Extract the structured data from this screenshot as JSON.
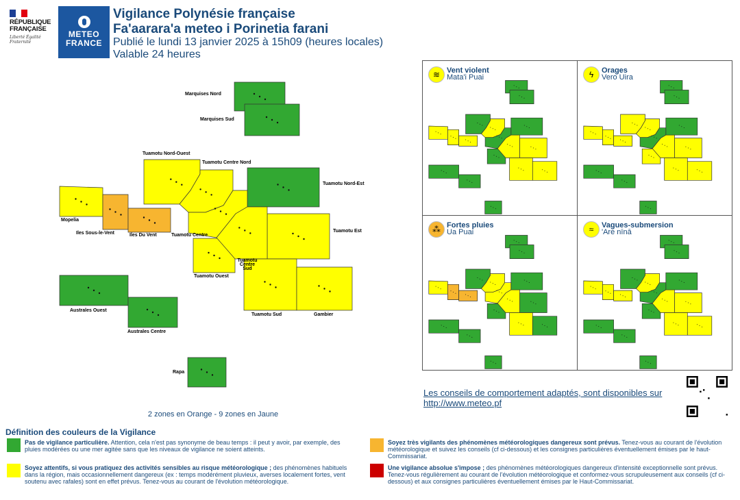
{
  "header": {
    "title_fr": "Vigilance Polynésie française",
    "title_tah": "Fa'aarara'a meteo i Porinetia farani",
    "published": "Publié le lundi 13 janvier 2025 à 15h09 (heures locales)",
    "validity": "Valable 24 heures"
  },
  "logos": {
    "republique_text": "RÉPUBLIQUE FRANÇAISE",
    "republique_motto": "Liberté Égalité Fraternité",
    "meteo_text": "METEO FRANCE"
  },
  "colors": {
    "green": "#32a832",
    "yellow": "#ffff00",
    "orange": "#f7b530",
    "red": "#cc0000",
    "text_blue": "#1a4a7a"
  },
  "zones": [
    {
      "id": "marquises-nord",
      "label": "Marquises Nord",
      "level": "green"
    },
    {
      "id": "marquises-sud",
      "label": "Marquises Sud",
      "level": "green"
    },
    {
      "id": "tuamotu-nord-ouest",
      "label": "Tuamotu Nord-Ouest",
      "level": "yellow"
    },
    {
      "id": "tuamotu-centre-nord",
      "label": "Tuamotu Centre Nord",
      "level": "yellow"
    },
    {
      "id": "tuamotu-nord-est",
      "label": "Tuamotu Nord-Est",
      "level": "green"
    },
    {
      "id": "mopelia",
      "label": "Mopelia",
      "level": "yellow"
    },
    {
      "id": "iles-sous-le-vent",
      "label": "Iles Sous-le-Vent",
      "level": "orange"
    },
    {
      "id": "iles-du-vent",
      "label": "Iles Du Vent",
      "level": "orange"
    },
    {
      "id": "tuamotu-centre",
      "label": "Tuamotu Centre",
      "level": "yellow"
    },
    {
      "id": "tuamotu-est",
      "label": "Tuamotu Est",
      "level": "yellow"
    },
    {
      "id": "tuamotu-ouest",
      "label": "Tuamotu Ouest",
      "level": "yellow"
    },
    {
      "id": "tuamotu-centre-sud",
      "label": "Tuamotu Centre Sud",
      "level": "yellow"
    },
    {
      "id": "australes-ouest",
      "label": "Australes Ouest",
      "level": "green"
    },
    {
      "id": "australes-centre",
      "label": "Australes Centre",
      "level": "green"
    },
    {
      "id": "tuamotu-sud",
      "label": "Tuamotu Sud",
      "level": "yellow"
    },
    {
      "id": "gambier",
      "label": "Gambier",
      "level": "yellow"
    },
    {
      "id": "rapa",
      "label": "Rapa",
      "level": "green"
    }
  ],
  "panels": [
    {
      "id": "vent",
      "title": "Vent violent",
      "subtitle": "Mata'i Puai",
      "icon": "wind-icon",
      "icon_glyph": "≋",
      "levels": {
        "iles-sous-le-vent": "yellow",
        "iles-du-vent": "yellow",
        "tuamotu-centre-nord": "yellow",
        "tuamotu-nord-ouest": "green",
        "tuamotu-centre": "green",
        "tuamotu-ouest": "green",
        "tuamotu-nord-est": "green"
      }
    },
    {
      "id": "orages",
      "title": "Orages",
      "subtitle": "Vero Uira",
      "icon": "lightning-icon",
      "icon_glyph": "ϟ",
      "levels": {
        "iles-sous-le-vent": "yellow",
        "iles-du-vent": "yellow",
        "tuamotu-nord-ouest": "yellow",
        "tuamotu-nord-est": "green",
        "tuamotu-centre": "green"
      }
    },
    {
      "id": "pluies",
      "title": "Fortes pluies",
      "subtitle": "Ua Puai",
      "icon": "rain-icon",
      "icon_glyph": "⁂",
      "levels": {
        "iles-sous-le-vent": "orange",
        "iles-du-vent": "orange",
        "tuamotu-nord-ouest": "green",
        "tuamotu-nord-est": "green",
        "tuamotu-est": "green",
        "tuamotu-ouest": "green",
        "gambier": "green"
      }
    },
    {
      "id": "vagues",
      "title": "Vagues-submersion",
      "subtitle": "'Are nīnā",
      "icon": "wave-icon",
      "icon_glyph": "≈",
      "levels": {
        "iles-sous-le-vent": "yellow",
        "iles-du-vent": "yellow",
        "tuamotu-nord-ouest": "green",
        "tuamotu-nord-est": "green",
        "tuamotu-centre": "green",
        "tuamotu-ouest": "green"
      }
    }
  ],
  "summary": "2 zones en Orange - 9 zones en Jaune",
  "advice": {
    "text": "Les conseils de comportement adaptés, sont disponibles sur",
    "link": "http://www.meteo.pf"
  },
  "definitions": {
    "title": "Définition des couleurs de la Vigilance",
    "items": [
      {
        "color": "green",
        "bold": "Pas de vigilance particulière.",
        "text": " Attention, cela n'est pas synonyme de beau temps : il peut y avoir, par exemple, des pluies modérées ou une mer agitée sans que les niveaux de vigilance ne soient atteints."
      },
      {
        "color": "orange",
        "bold": "Soyez très vigilants des phénomènes météorologiques dangereux sont prévus.",
        "text": " Tenez-vous au courant de l'évolution météorologique et suivez les conseils (cf ci-dessous) et les consignes particulières éventuellement émises par le haut-Commissariat."
      },
      {
        "color": "yellow",
        "bold": "Soyez attentifs, si vous pratiquez des activités sensibles au risque météorologique ;",
        "text": " des phénomènes habituels dans la région, mais occasionnellement dangereux (ex : temps modérément pluvieux, averses localement fortes, vent soutenu avec rafales) sont en effet prévus. Tenez-vous au courant de l'évolution météorologique."
      },
      {
        "color": "red",
        "bold": "Une vigilance absolue s'impose ;",
        "text": " des phénomènes météorologiques dangereux d'intensité exceptionnelle sont prévus. Tenez-vous régulièrement au courant de l'évolution météorologique et conformez-vous scrupuleusement aux conseils (cf ci-dessous) et aux consignes particulières éventuellement émises par le Haut-Commissariat."
      }
    ]
  }
}
